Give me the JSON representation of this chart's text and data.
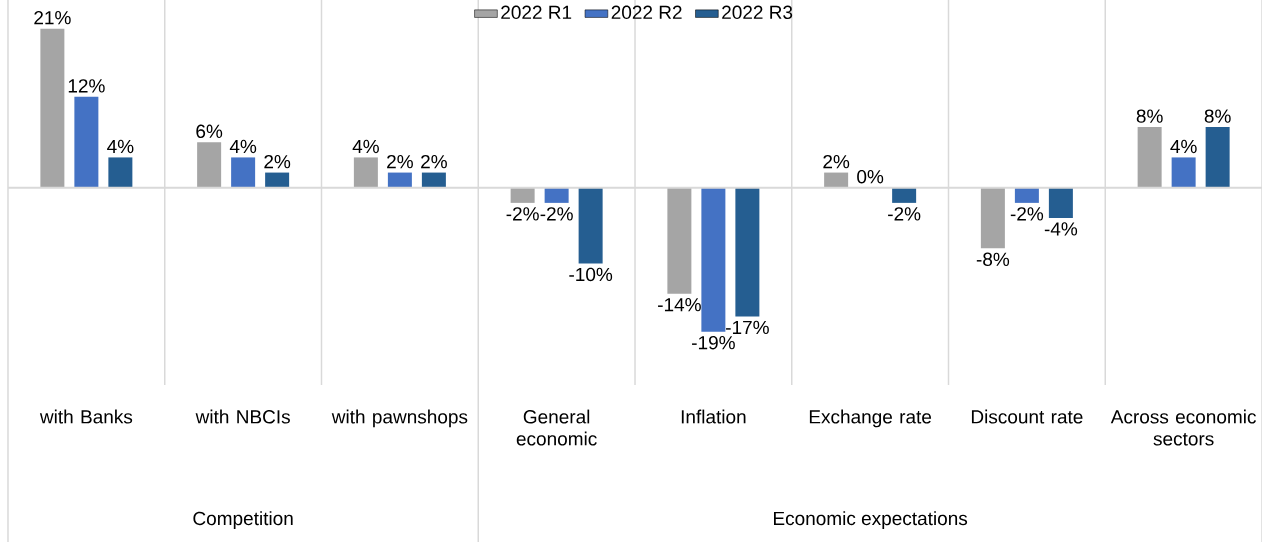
{
  "chart_data": {
    "type": "bar",
    "categories": [
      "with Banks",
      "with NBCIs",
      "with pawnshops",
      "General economic",
      "Inflation",
      "Exchange rate",
      "Discount rate",
      "Across economic sectors"
    ],
    "series": [
      {
        "name": "2022 R1",
        "color": "#a5a5a5",
        "values": [
          21,
          6,
          4,
          -2,
          -14,
          2,
          -8,
          8
        ],
        "value_labels": [
          "21%",
          "6%",
          "4%",
          "-2%",
          "-14%",
          "2%",
          "-8%",
          "8%"
        ]
      },
      {
        "name": "2022 R2",
        "color": "#4472c4",
        "values": [
          12,
          4,
          2,
          -2,
          -19,
          0,
          -2,
          4
        ],
        "value_labels": [
          "12%",
          "4%",
          "2%",
          "-2%",
          "-19%",
          "0%",
          "-2%",
          "4%"
        ]
      },
      {
        "name": "2022 R3",
        "color": "#255e91",
        "values": [
          4,
          2,
          2,
          -10,
          -17,
          -2,
          -4,
          8
        ],
        "value_labels": [
          "4%",
          "2%",
          "2%",
          "-10%",
          "-17%",
          "-2%",
          "-4%",
          "8%"
        ]
      }
    ],
    "legend": "top",
    "annotations": [
      "Competition",
      "Economic expectations"
    ]
  }
}
